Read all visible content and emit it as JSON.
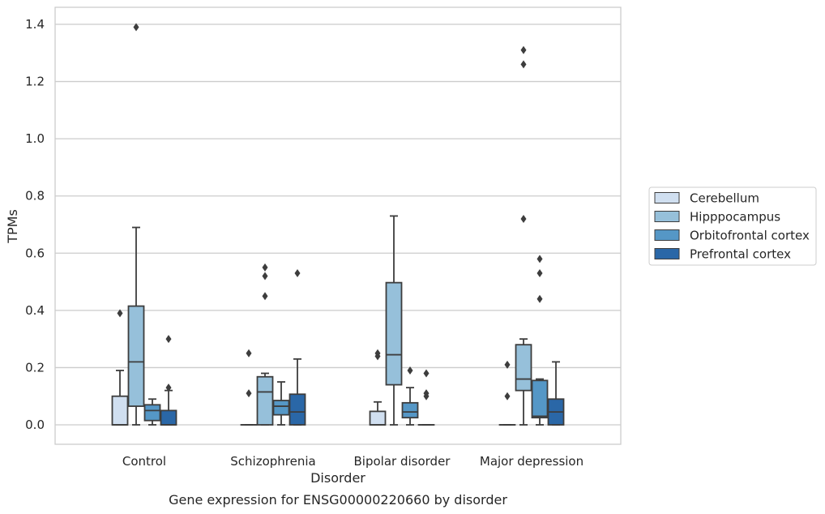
{
  "chart_data": {
    "type": "box",
    "title": "Gene expression for ENSG00000220660 by disorder",
    "xlabel": "Disorder",
    "ylabel": "TPMs",
    "ylim": [
      -0.065,
      1.46
    ],
    "yticks": [
      0.0,
      0.2,
      0.4,
      0.6,
      0.8,
      1.0,
      1.2,
      1.4
    ],
    "ytick_labels": [
      "0.0",
      "0.2",
      "0.4",
      "0.6",
      "0.8",
      "1.0",
      "1.2",
      "1.4"
    ],
    "grid": "horizontal",
    "legend_position": "right",
    "categories": [
      "Control",
      "Schizophrenia",
      "Bipolar disorder",
      "Major depression"
    ],
    "series": [
      {
        "name": "Cerebellum",
        "color": "#d0dff0",
        "boxes": [
          {
            "whislo": 0.0,
            "q1": 0.0,
            "med": 0.0,
            "q3": 0.1,
            "whishi": 0.19,
            "fliers": [
              0.39
            ]
          },
          {
            "whislo": 0.0,
            "q1": 0.0,
            "med": 0.0,
            "q3": 0.0,
            "whishi": 0.0,
            "fliers": [
              0.11,
              0.25
            ]
          },
          {
            "whislo": 0.0,
            "q1": 0.0,
            "med": 0.0,
            "q3": 0.047,
            "whishi": 0.08,
            "fliers": [
              0.24,
              0.25
            ]
          },
          {
            "whislo": 0.0,
            "q1": 0.0,
            "med": 0.0,
            "q3": 0.0,
            "whishi": 0.0,
            "fliers": [
              0.1,
              0.21
            ]
          }
        ]
      },
      {
        "name": "Hipppocampus",
        "color": "#96c0da",
        "boxes": [
          {
            "whislo": 0.0,
            "q1": 0.065,
            "med": 0.22,
            "q3": 0.415,
            "whishi": 0.69,
            "fliers": [
              1.39
            ]
          },
          {
            "whislo": 0.0,
            "q1": 0.0,
            "med": 0.115,
            "q3": 0.168,
            "whishi": 0.18,
            "fliers": [
              0.45,
              0.52,
              0.55
            ]
          },
          {
            "whislo": 0.0,
            "q1": 0.14,
            "med": 0.245,
            "q3": 0.497,
            "whishi": 0.73,
            "fliers": []
          },
          {
            "whislo": 0.0,
            "q1": 0.12,
            "med": 0.16,
            "q3": 0.28,
            "whishi": 0.3,
            "fliers": [
              0.72,
              1.26,
              1.31
            ]
          }
        ]
      },
      {
        "name": "Orbitofrontal cortex",
        "color": "#5597c6",
        "boxes": [
          {
            "whislo": 0.0,
            "q1": 0.015,
            "med": 0.05,
            "q3": 0.07,
            "whishi": 0.09,
            "fliers": []
          },
          {
            "whislo": 0.0,
            "q1": 0.035,
            "med": 0.065,
            "q3": 0.085,
            "whishi": 0.15,
            "fliers": []
          },
          {
            "whislo": 0.0,
            "q1": 0.025,
            "med": 0.045,
            "q3": 0.077,
            "whishi": 0.13,
            "fliers": [
              0.19
            ]
          },
          {
            "whislo": 0.0,
            "q1": 0.025,
            "med": 0.03,
            "q3": 0.155,
            "whishi": 0.16,
            "fliers": [
              0.44,
              0.53,
              0.58
            ]
          }
        ]
      },
      {
        "name": "Prefrontal cortex",
        "color": "#2a67a7",
        "boxes": [
          {
            "whislo": 0.0,
            "q1": 0.0,
            "med": 0.0,
            "q3": 0.05,
            "whishi": 0.12,
            "fliers": [
              0.13,
              0.3
            ]
          },
          {
            "whislo": 0.0,
            "q1": 0.0,
            "med": 0.045,
            "q3": 0.107,
            "whishi": 0.23,
            "fliers": [
              0.53
            ]
          },
          {
            "whislo": 0.0,
            "q1": 0.0,
            "med": 0.0,
            "q3": 0.0,
            "whishi": 0.0,
            "fliers": [
              0.1,
              0.11,
              0.18
            ]
          },
          {
            "whislo": 0.0,
            "q1": 0.0,
            "med": 0.045,
            "q3": 0.09,
            "whishi": 0.22,
            "fliers": []
          }
        ]
      }
    ]
  }
}
